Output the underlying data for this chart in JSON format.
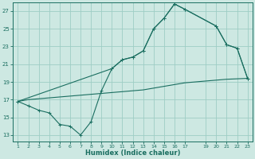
{
  "xlabel": "Humidex (Indice chaleur)",
  "background_color": "#cde8e2",
  "line_color": "#1a6e60",
  "grid_color": "#9ecdc5",
  "yticks": [
    13,
    15,
    17,
    19,
    21,
    23,
    25,
    27
  ],
  "xtick_positions": [
    1,
    2,
    3,
    4,
    5,
    6,
    7,
    8,
    9,
    10,
    11,
    12,
    13,
    14,
    15,
    16,
    17,
    19,
    20,
    21,
    22,
    23
  ],
  "xlim": [
    0.5,
    23.5
  ],
  "ylim": [
    12.3,
    28.0
  ],
  "line_jagged_x": [
    1,
    2,
    3,
    4,
    5,
    6,
    7,
    8,
    9,
    10,
    11,
    12,
    13,
    14,
    15,
    16,
    17,
    20,
    21,
    22,
    23
  ],
  "line_jagged_y": [
    16.8,
    16.3,
    15.8,
    15.5,
    14.2,
    14.0,
    13.0,
    14.5,
    18.0,
    20.5,
    21.5,
    21.8,
    22.5,
    25.0,
    26.2,
    27.8,
    27.2,
    25.3,
    23.2,
    22.8,
    19.4
  ],
  "line_upper_x": [
    1,
    10,
    11,
    12,
    13,
    14,
    15,
    16,
    17,
    20,
    21,
    22,
    23
  ],
  "line_upper_y": [
    16.8,
    20.5,
    21.5,
    21.8,
    22.5,
    25.0,
    26.2,
    27.8,
    27.2,
    25.3,
    23.2,
    22.8,
    19.4
  ],
  "line_diag_x": [
    1,
    2,
    3,
    4,
    5,
    6,
    7,
    8,
    9,
    10,
    11,
    12,
    13,
    14,
    15,
    16,
    17,
    19,
    20,
    21,
    22,
    23
  ],
  "line_diag_y": [
    16.8,
    17.0,
    17.1,
    17.2,
    17.3,
    17.4,
    17.5,
    17.6,
    17.7,
    17.8,
    17.9,
    18.0,
    18.1,
    18.3,
    18.5,
    18.7,
    18.9,
    19.1,
    19.2,
    19.3,
    19.35,
    19.4
  ]
}
